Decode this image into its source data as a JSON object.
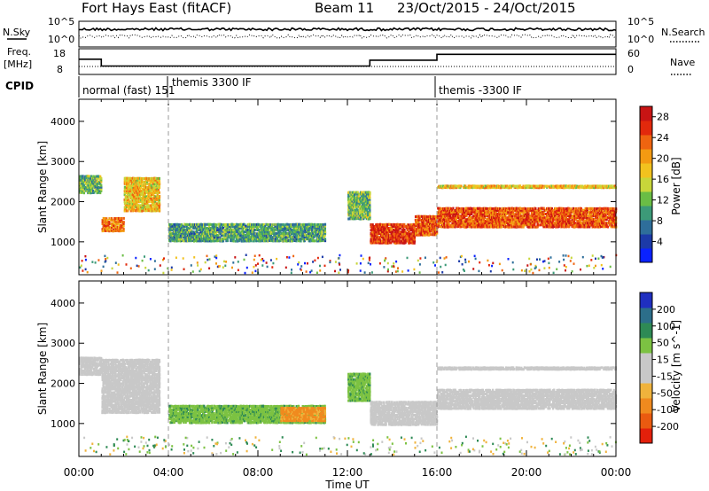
{
  "header": {
    "station": "Fort Hays East (fitACF)",
    "beam": "Beam 11",
    "date_range": "23/Oct/2015 - 24/Oct/2015"
  },
  "noise_panel": {
    "left_label": "N.Sky",
    "right_label": "N.Search",
    "left_ticks": [
      "10^5",
      "10^0"
    ],
    "right_ticks": [
      "10^5",
      "10^0"
    ]
  },
  "freq_panel": {
    "left_label": "Freq. [MHz]",
    "left_ticks": [
      "18",
      "8"
    ],
    "right_label": "Nave",
    "right_ticks": [
      "60",
      "0"
    ],
    "freq_steps_mhz": [
      {
        "from": "00:00",
        "to": "01:00",
        "value": 14
      },
      {
        "from": "01:00",
        "to": "13:00",
        "value": 10.5
      },
      {
        "from": "13:00",
        "to": "16:00",
        "value": 13.5
      },
      {
        "from": "16:00",
        "to": "24:00",
        "value": 16.5
      }
    ]
  },
  "cpid_panel": {
    "label": "CPID",
    "segments": [
      {
        "start": "00:00",
        "text": "normal (fast) 151"
      },
      {
        "start": "04:00",
        "text": "themis 3300 IF"
      },
      {
        "start": "16:00",
        "text": "themis -3300 IF"
      }
    ]
  },
  "chart_data": [
    {
      "type": "heatmap",
      "name": "power",
      "xlabel": "Time UT",
      "ylabel": "Slant Range [km]",
      "x_ticks": [
        "00:00",
        "04:00",
        "08:00",
        "12:00",
        "16:00",
        "20:00",
        "00:00"
      ],
      "y_ticks": [
        1000,
        2000,
        3000,
        4000
      ],
      "ylim": [
        180,
        4550
      ],
      "colorbar_label": "Power [dB]",
      "colorbar_ticks": [
        4,
        8,
        12,
        16,
        20,
        24,
        28
      ],
      "colorbar_colors": [
        "#0a22ff",
        "#1c3aa8",
        "#2e6e9a",
        "#3c9a78",
        "#6abd45",
        "#c8d63a",
        "#f2c21e",
        "#f39a12",
        "#ef6410",
        "#e2290c",
        "#c81414"
      ],
      "vertical_markers": [
        "04:00",
        "16:00"
      ],
      "regions": [
        {
          "t0": 0.0,
          "t1": 1.0,
          "r0": 2250,
          "r1": 2700,
          "value": 12
        },
        {
          "t0": 1.0,
          "t1": 2.0,
          "r0": 1300,
          "r1": 1650,
          "value": 22
        },
        {
          "t0": 2.0,
          "t1": 3.6,
          "r0": 1800,
          "r1": 2650,
          "value": 18
        },
        {
          "t0": 4.0,
          "t1": 11.0,
          "r0": 1050,
          "r1": 1500,
          "value": 10
        },
        {
          "t0": 12.0,
          "t1": 13.0,
          "r0": 1600,
          "r1": 2300,
          "value": 12
        },
        {
          "t0": 13.0,
          "t1": 15.0,
          "r0": 1000,
          "r1": 1500,
          "value": 26
        },
        {
          "t0": 15.0,
          "t1": 16.0,
          "r0": 1200,
          "r1": 1700,
          "value": 24
        },
        {
          "t0": 16.0,
          "t1": 24.0,
          "r0": 1400,
          "r1": 1900,
          "value": 24
        },
        {
          "t0": 16.0,
          "t1": 24.0,
          "r0": 2380,
          "r1": 2450,
          "value": 18
        }
      ]
    },
    {
      "type": "heatmap",
      "name": "velocity",
      "xlabel": "Time UT",
      "ylabel": "Slant Range [km]",
      "x_ticks": [
        "00:00",
        "04:00",
        "08:00",
        "12:00",
        "16:00",
        "20:00",
        "00:00"
      ],
      "y_ticks": [
        1000,
        2000,
        3000,
        4000
      ],
      "ylim": [
        180,
        4550
      ],
      "colorbar_label": "Velocity [m s^-1]",
      "colorbar_ticks": [
        "200",
        "100",
        "50",
        "15",
        "-15",
        "-50",
        "-100",
        "-200"
      ],
      "colorbar_colors": [
        "#1f2fc0",
        "#2c6e8a",
        "#2e8a55",
        "#7cc242",
        "#c8c8c8",
        "#c8c8c8",
        "#f0b33c",
        "#f08a1e",
        "#ea5a10",
        "#e3200b"
      ],
      "vertical_markers": [
        "04:00",
        "16:00"
      ],
      "regions": [
        {
          "t0": 0.0,
          "t1": 1.0,
          "r0": 2250,
          "r1": 2700,
          "value": 0
        },
        {
          "t0": 1.0,
          "t1": 3.6,
          "r0": 1300,
          "r1": 2650,
          "value": 0
        },
        {
          "t0": 4.0,
          "t1": 11.0,
          "r0": 1050,
          "r1": 1500,
          "value": 40
        },
        {
          "t0": 9.0,
          "t1": 11.0,
          "r0": 1100,
          "r1": 1450,
          "value": -60
        },
        {
          "t0": 12.0,
          "t1": 13.0,
          "r0": 1600,
          "r1": 2300,
          "value": 40
        },
        {
          "t0": 13.0,
          "t1": 16.0,
          "r0": 1000,
          "r1": 1600,
          "value": 0
        },
        {
          "t0": 16.0,
          "t1": 24.0,
          "r0": 1400,
          "r1": 1900,
          "value": 0
        },
        {
          "t0": 16.0,
          "t1": 24.0,
          "r0": 2380,
          "r1": 2450,
          "value": 0
        }
      ]
    }
  ]
}
